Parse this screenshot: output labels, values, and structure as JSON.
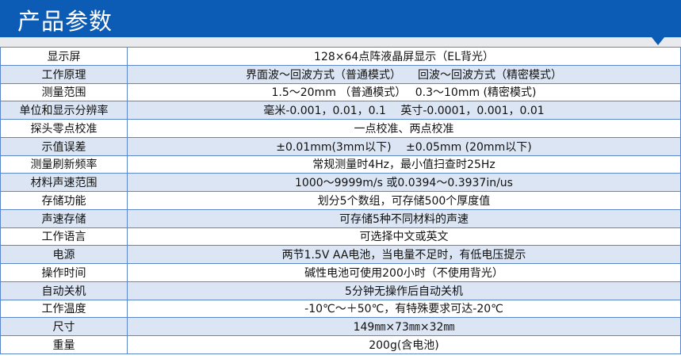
{
  "header": {
    "title": "产品参数",
    "color": "#0c5bb5"
  },
  "rows": [
    {
      "label": "显示屏",
      "value": "128×64点阵液晶屏显示（EL背光）"
    },
    {
      "label": "工作原理",
      "value": "界面波～回波方式（普通模式）　　回波～回波方式（精密模式）"
    },
    {
      "label": "测量范围",
      "value": "1.5～20mm （普通模式）　 0.3～10mm (精密模式)"
    },
    {
      "label": "单位和显示分辨率",
      "value": "毫米-0.001，0.01，0.1　 英寸-0.0001，0.001，0.01"
    },
    {
      "label": "探头零点校准",
      "value": "一点校准、两点校准"
    },
    {
      "label": "示值误差",
      "value": "±0.01mm(3mm以下)　 ±0.05mm (20mm以下)"
    },
    {
      "label": "测量刷新频率",
      "value": "常规测量时4Hz，最小值扫查时25Hz"
    },
    {
      "label": "材料声速范围",
      "value": "1000～9999m/s 或0.0394～0.3937in/us"
    },
    {
      "label": "存储功能",
      "value": "划分5个数组，可存储500个厚度值"
    },
    {
      "label": "声速存储",
      "value": "可存储5种不同材料的声速"
    },
    {
      "label": "工作语言",
      "value": "可选择中文或英文"
    },
    {
      "label": "电源",
      "value": "两节1.5V AA电池，当电量不足时，有低电压提示"
    },
    {
      "label": "操作时间",
      "value": "碱性电池可使用200小时（不使用背光）"
    },
    {
      "label": "自动关机",
      "value": "5分钟无操作后自动关机"
    },
    {
      "label": "工作温度",
      "value": "-10℃～＋50℃，有特殊要求可达-20℃"
    },
    {
      "label": "尺寸",
      "value": "149㎜×73㎜×32㎜"
    },
    {
      "label": "重量",
      "value": "200g(含电池)"
    }
  ]
}
